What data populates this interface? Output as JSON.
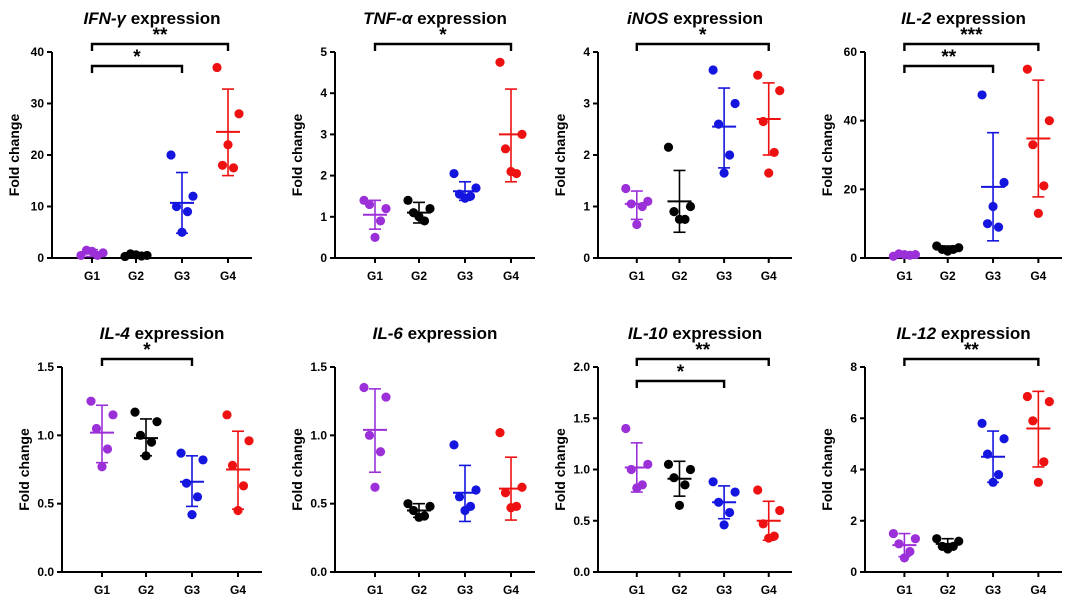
{
  "figure_colors": {
    "G1": "#9B30D9",
    "G2": "#000000",
    "G3": "#1515E0",
    "G4": "#EE1111"
  },
  "chart_data": [
    {
      "type": "scatter",
      "title_italic": "IFN-γ",
      "title_rest": " expression",
      "ylabel": "Fold change",
      "categories": [
        "G1",
        "G2",
        "G3",
        "G4"
      ],
      "ylim": [
        0,
        40
      ],
      "yticks": [
        "0",
        "10",
        "20",
        "30",
        "40"
      ],
      "ytick_values": [
        0,
        10,
        20,
        30,
        40
      ],
      "series": [
        {
          "name": "G1",
          "points": [
            0.5,
            1.0,
            1.5,
            0.5,
            1.3
          ],
          "mean": 1.0,
          "sd_low": 0.3,
          "sd_high": 1.6
        },
        {
          "name": "G2",
          "points": [
            0.3,
            0.5,
            0.8,
            0.4,
            0.6
          ],
          "mean": 0.5,
          "sd_low": 0.3,
          "sd_high": 0.8
        },
        {
          "name": "G3",
          "points": [
            20,
            12,
            10,
            9,
            5
          ],
          "mean": 10.7,
          "sd_low": 4.8,
          "sd_high": 16.6
        },
        {
          "name": "G4",
          "points": [
            37,
            28,
            18,
            17.5,
            22
          ],
          "mean": 24.5,
          "sd_low": 16.0,
          "sd_high": 32.8
        }
      ],
      "brackets": [
        {
          "from": "G1",
          "to": "G3",
          "label": "*",
          "level": 0
        },
        {
          "from": "G1",
          "to": "G4",
          "label": "**",
          "level": 1
        }
      ]
    },
    {
      "type": "scatter",
      "title_italic": "TNF-α",
      "title_rest": " expression",
      "ylabel": "Fold change",
      "categories": [
        "G1",
        "G2",
        "G3",
        "G4"
      ],
      "ylim": [
        0,
        5
      ],
      "yticks": [
        "0",
        "1",
        "2",
        "3",
        "4",
        "5"
      ],
      "ytick_values": [
        0,
        1,
        2,
        3,
        4,
        5
      ],
      "series": [
        {
          "name": "G1",
          "points": [
            1.4,
            1.2,
            1.3,
            0.9,
            0.5
          ],
          "mean": 1.05,
          "sd_low": 0.7,
          "sd_high": 1.4
        },
        {
          "name": "G2",
          "points": [
            1.4,
            1.2,
            1.1,
            0.9,
            1.0
          ],
          "mean": 1.1,
          "sd_low": 0.85,
          "sd_high": 1.35
        },
        {
          "name": "G3",
          "points": [
            2.05,
            1.7,
            1.55,
            1.5,
            1.45
          ],
          "mean": 1.62,
          "sd_low": 1.4,
          "sd_high": 1.85
        },
        {
          "name": "G4",
          "points": [
            4.75,
            3.0,
            2.65,
            2.05,
            2.1
          ],
          "mean": 3.0,
          "sd_low": 1.85,
          "sd_high": 4.1
        }
      ],
      "brackets": [
        {
          "from": "G1",
          "to": "G4",
          "label": "*",
          "level": 1
        }
      ]
    },
    {
      "type": "scatter",
      "title_italic": "iNOS",
      "title_rest": " expression",
      "ylabel": "Fold change",
      "categories": [
        "G1",
        "G2",
        "G3",
        "G4"
      ],
      "ylim": [
        0,
        4
      ],
      "yticks": [
        "0",
        "1",
        "2",
        "3",
        "4"
      ],
      "ytick_values": [
        0,
        1,
        2,
        3,
        4
      ],
      "series": [
        {
          "name": "G1",
          "points": [
            1.35,
            1.1,
            1.05,
            1.0,
            0.65
          ],
          "mean": 1.05,
          "sd_low": 0.75,
          "sd_high": 1.3
        },
        {
          "name": "G2",
          "points": [
            2.15,
            1.0,
            0.9,
            0.75,
            0.75
          ],
          "mean": 1.1,
          "sd_low": 0.5,
          "sd_high": 1.7
        },
        {
          "name": "G3",
          "points": [
            3.65,
            3.0,
            2.6,
            2.0,
            1.65
          ],
          "mean": 2.55,
          "sd_low": 1.75,
          "sd_high": 3.3
        },
        {
          "name": "G4",
          "points": [
            3.55,
            3.25,
            2.65,
            2.05,
            1.65
          ],
          "mean": 2.7,
          "sd_low": 2.0,
          "sd_high": 3.4
        }
      ],
      "brackets": [
        {
          "from": "G1",
          "to": "G4",
          "label": "*",
          "level": 1
        }
      ]
    },
    {
      "type": "scatter",
      "title_italic": "IL-2",
      "title_rest": " expression",
      "ylabel": "Fold change",
      "categories": [
        "G1",
        "G2",
        "G3",
        "G4"
      ],
      "ylim": [
        0,
        60
      ],
      "yticks": [
        "0",
        "20",
        "40",
        "60"
      ],
      "ytick_values": [
        0,
        20,
        40,
        60
      ],
      "series": [
        {
          "name": "G1",
          "points": [
            0.5,
            1.0,
            1.2,
            0.8,
            1.0
          ],
          "mean": 0.9,
          "sd_low": 0.5,
          "sd_high": 1.3
        },
        {
          "name": "G2",
          "points": [
            3.5,
            3.0,
            2.5,
            2.5,
            2.0
          ],
          "mean": 2.7,
          "sd_low": 2.0,
          "sd_high": 3.5
        },
        {
          "name": "G3",
          "points": [
            47.5,
            22,
            10,
            9,
            15
          ],
          "mean": 20.7,
          "sd_low": 5.0,
          "sd_high": 36.5
        },
        {
          "name": "G4",
          "points": [
            55,
            40,
            33,
            21,
            13
          ],
          "mean": 34.8,
          "sd_low": 17.8,
          "sd_high": 51.8
        }
      ],
      "brackets": [
        {
          "from": "G1",
          "to": "G3",
          "label": "**",
          "level": 0
        },
        {
          "from": "G1",
          "to": "G4",
          "label": "***",
          "level": 1
        }
      ]
    },
    {
      "type": "scatter",
      "title_italic": "IL-4",
      "title_rest": " expression",
      "ylabel": "Fold change",
      "categories": [
        "G1",
        "G2",
        "G3",
        "G4"
      ],
      "ylim": [
        0,
        1.5
      ],
      "yticks": [
        "0.0",
        "0.5",
        "1.0",
        "1.5"
      ],
      "ytick_values": [
        0,
        0.5,
        1.0,
        1.5
      ],
      "series": [
        {
          "name": "G1",
          "points": [
            1.25,
            1.15,
            1.05,
            0.9,
            0.77
          ],
          "mean": 1.02,
          "sd_low": 0.8,
          "sd_high": 1.22
        },
        {
          "name": "G2",
          "points": [
            1.17,
            1.1,
            1.0,
            0.95,
            0.85
          ],
          "mean": 0.98,
          "sd_low": 0.85,
          "sd_high": 1.12
        },
        {
          "name": "G3",
          "points": [
            0.87,
            0.82,
            0.65,
            0.55,
            0.42
          ],
          "mean": 0.66,
          "sd_low": 0.48,
          "sd_high": 0.85
        },
        {
          "name": "G4",
          "points": [
            1.15,
            0.96,
            0.78,
            0.63,
            0.45
          ],
          "mean": 0.75,
          "sd_low": 0.46,
          "sd_high": 1.03
        }
      ],
      "brackets": [
        {
          "from": "G1",
          "to": "G3",
          "label": "*",
          "level": 1
        }
      ]
    },
    {
      "type": "scatter",
      "title_italic": "IL-6",
      "title_rest": " expression",
      "ylabel": "Fold change",
      "categories": [
        "G1",
        "G2",
        "G3",
        "G4"
      ],
      "ylim": [
        0,
        1.5
      ],
      "yticks": [
        "0.0",
        "0.5",
        "1.0",
        "1.5"
      ],
      "ytick_values": [
        0,
        0.5,
        1.0,
        1.5
      ],
      "series": [
        {
          "name": "G1",
          "points": [
            1.35,
            1.28,
            1.0,
            0.88,
            0.62
          ],
          "mean": 1.04,
          "sd_low": 0.73,
          "sd_high": 1.34
        },
        {
          "name": "G2",
          "points": [
            0.5,
            0.48,
            0.45,
            0.41,
            0.4
          ],
          "mean": 0.45,
          "sd_low": 0.4,
          "sd_high": 0.5
        },
        {
          "name": "G3",
          "points": [
            0.93,
            0.6,
            0.55,
            0.48,
            0.45
          ],
          "mean": 0.58,
          "sd_low": 0.37,
          "sd_high": 0.78
        },
        {
          "name": "G4",
          "points": [
            1.02,
            0.62,
            0.58,
            0.48,
            0.47
          ],
          "mean": 0.61,
          "sd_low": 0.38,
          "sd_high": 0.84
        }
      ],
      "brackets": []
    },
    {
      "type": "scatter",
      "title_italic": "IL-10",
      "title_rest": " expression",
      "ylabel": "Fold change",
      "categories": [
        "G1",
        "G2",
        "G3",
        "G4"
      ],
      "ylim": [
        0,
        2.0
      ],
      "yticks": [
        "0.0",
        "0.5",
        "1.0",
        "1.5",
        "2.0"
      ],
      "ytick_values": [
        0,
        0.5,
        1.0,
        1.5,
        2.0
      ],
      "series": [
        {
          "name": "G1",
          "points": [
            1.4,
            1.05,
            1.0,
            0.85,
            0.82
          ],
          "mean": 1.02,
          "sd_low": 0.78,
          "sd_high": 1.26
        },
        {
          "name": "G2",
          "points": [
            1.05,
            1.0,
            0.92,
            0.85,
            0.65
          ],
          "mean": 0.91,
          "sd_low": 0.74,
          "sd_high": 1.08
        },
        {
          "name": "G3",
          "points": [
            0.88,
            0.78,
            0.68,
            0.58,
            0.46
          ],
          "mean": 0.68,
          "sd_low": 0.52,
          "sd_high": 0.84
        },
        {
          "name": "G4",
          "points": [
            0.8,
            0.6,
            0.47,
            0.35,
            0.33
          ],
          "mean": 0.5,
          "sd_low": 0.31,
          "sd_high": 0.69
        }
      ],
      "brackets": [
        {
          "from": "G1",
          "to": "G3",
          "label": "*",
          "level": 0
        },
        {
          "from": "G1",
          "to": "G4",
          "label": "**",
          "level": 1
        }
      ]
    },
    {
      "type": "scatter",
      "title_italic": "IL-12",
      "title_rest": " expression",
      "ylabel": "Fold change",
      "categories": [
        "G1",
        "G2",
        "G3",
        "G4"
      ],
      "ylim": [
        0,
        8
      ],
      "yticks": [
        "0",
        "2",
        "4",
        "6",
        "8"
      ],
      "ytick_values": [
        0,
        2,
        4,
        6,
        8
      ],
      "series": [
        {
          "name": "G1",
          "points": [
            1.5,
            1.3,
            1.1,
            0.8,
            0.55
          ],
          "mean": 1.05,
          "sd_low": 0.6,
          "sd_high": 1.5
        },
        {
          "name": "G2",
          "points": [
            1.3,
            1.2,
            1.0,
            1.0,
            0.9
          ],
          "mean": 1.1,
          "sd_low": 0.9,
          "sd_high": 1.3
        },
        {
          "name": "G3",
          "points": [
            5.8,
            5.2,
            4.6,
            3.8,
            3.5
          ],
          "mean": 4.5,
          "sd_low": 3.5,
          "sd_high": 5.5
        },
        {
          "name": "G4",
          "points": [
            6.85,
            6.65,
            5.9,
            4.3,
            3.5
          ],
          "mean": 5.6,
          "sd_low": 4.1,
          "sd_high": 7.05
        }
      ],
      "brackets": [
        {
          "from": "G1",
          "to": "G4",
          "label": "**",
          "level": 1
        }
      ]
    }
  ]
}
